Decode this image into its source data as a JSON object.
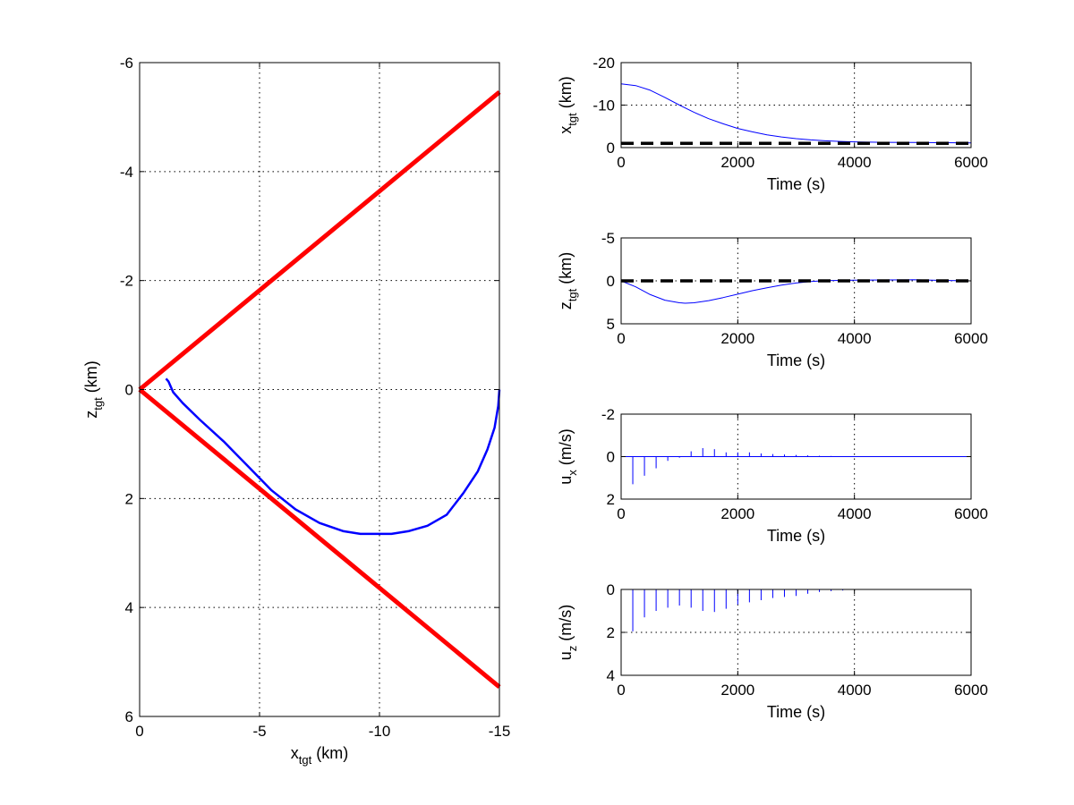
{
  "colors": {
    "cone": "#ff0000",
    "trajectory": "#0000ff",
    "reference": "#000000",
    "background": "#ffffff"
  },
  "chart_data": [
    {
      "type": "line",
      "id": "trajectory",
      "xlabel": {
        "main": "x",
        "sub": "tgt",
        "unit": " (km)"
      },
      "ylabel": {
        "main": "z",
        "sub": "tgt",
        "unit": " (km)"
      },
      "xlim": [
        0,
        -15
      ],
      "ylim": [
        6,
        -6
      ],
      "xticks": [
        0,
        -5,
        -10,
        -15
      ],
      "xtick_labels": [
        "0",
        "-5",
        "-10",
        "-15"
      ],
      "yticks": [
        -6,
        -4,
        -2,
        0,
        2,
        4,
        6
      ],
      "ytick_labels": [
        "-6",
        "-4",
        "-2",
        "0",
        "2",
        "4",
        "6"
      ],
      "grid": true,
      "series": [
        {
          "role": "cone-upper",
          "color": "#ff0000",
          "x": [
            0,
            -15
          ],
          "y": [
            0,
            -5.46
          ]
        },
        {
          "role": "cone-lower",
          "color": "#ff0000",
          "x": [
            0,
            -15
          ],
          "y": [
            0,
            5.46
          ]
        },
        {
          "role": "trajectory",
          "color": "#0000ff",
          "x": [
            -15,
            -14.95,
            -14.8,
            -14.5,
            -14.1,
            -13.5,
            -12.8,
            -12.0,
            -11.2,
            -10.5,
            -10.0,
            -9.2,
            -8.5,
            -7.5,
            -6.5,
            -5.5,
            -4.5,
            -3.5,
            -2.5,
            -1.8,
            -1.4,
            -1.2,
            -1.1
          ],
          "y": [
            0,
            0.3,
            0.7,
            1.1,
            1.5,
            1.9,
            2.3,
            2.5,
            2.6,
            2.65,
            2.65,
            2.65,
            2.6,
            2.45,
            2.2,
            1.85,
            1.4,
            0.95,
            0.55,
            0.25,
            0.05,
            -0.15,
            -0.2
          ]
        }
      ]
    },
    {
      "type": "line",
      "id": "x-vs-time",
      "xlabel": "Time (s)",
      "ylabel": {
        "main": "x",
        "sub": "tgt",
        "unit": " (km)"
      },
      "xlim": [
        0,
        6000
      ],
      "ylim": [
        0,
        -20
      ],
      "xticks": [
        0,
        2000,
        4000,
        6000
      ],
      "xtick_labels": [
        "0",
        "2000",
        "4000",
        "6000"
      ],
      "yticks": [
        -20,
        -10,
        0
      ],
      "ytick_labels": [
        "-20",
        "-10",
        "0"
      ],
      "grid": true,
      "series": [
        {
          "role": "trajectory",
          "color": "#0000ff",
          "x": [
            0,
            250,
            500,
            750,
            1000,
            1250,
            1500,
            1750,
            2000,
            2250,
            2500,
            2750,
            3000,
            3250,
            3500,
            3750,
            4000,
            4500,
            5000,
            5500,
            6000
          ],
          "y": [
            -15,
            -14.6,
            -13.5,
            -11.8,
            -10,
            -8.3,
            -6.8,
            -5.6,
            -4.5,
            -3.7,
            -3.0,
            -2.5,
            -2.1,
            -1.8,
            -1.6,
            -1.45,
            -1.35,
            -1.25,
            -1.2,
            -1.15,
            -1.1
          ]
        },
        {
          "role": "reference",
          "color": "#000000",
          "dashed": true,
          "x": [
            0,
            6000
          ],
          "y": [
            -1,
            -1
          ]
        }
      ]
    },
    {
      "type": "line",
      "id": "z-vs-time",
      "xlabel": "Time (s)",
      "ylabel": {
        "main": "z",
        "sub": "tgt",
        "unit": " (km)"
      },
      "xlim": [
        0,
        6000
      ],
      "ylim": [
        5,
        -5
      ],
      "xticks": [
        0,
        2000,
        4000,
        6000
      ],
      "xtick_labels": [
        "0",
        "2000",
        "4000",
        "6000"
      ],
      "yticks": [
        -5,
        0,
        5
      ],
      "ytick_labels": [
        "-5",
        "0",
        "5"
      ],
      "grid": true,
      "series": [
        {
          "role": "trajectory",
          "color": "#0000ff",
          "x": [
            0,
            250,
            500,
            750,
            1000,
            1100,
            1250,
            1500,
            1750,
            2000,
            2250,
            2500,
            2750,
            3000,
            3250,
            3500,
            4000,
            4500,
            5000,
            5500,
            6000
          ],
          "y": [
            0,
            0.7,
            1.6,
            2.25,
            2.55,
            2.6,
            2.55,
            2.3,
            1.95,
            1.55,
            1.15,
            0.8,
            0.5,
            0.25,
            0.08,
            -0.02,
            -0.08,
            -0.1,
            -0.12,
            -0.05,
            0
          ]
        },
        {
          "role": "reference",
          "color": "#000000",
          "dashed": true,
          "x": [
            0,
            6000
          ],
          "y": [
            0,
            0
          ]
        }
      ]
    },
    {
      "type": "bar",
      "id": "ux-vs-time",
      "xlabel": "Time (s)",
      "ylabel": {
        "main": "u",
        "sub": "x",
        "unit": " (m/s)"
      },
      "xlim": [
        0,
        6000
      ],
      "ylim": [
        2,
        -2
      ],
      "xticks": [
        0,
        2000,
        4000,
        6000
      ],
      "xtick_labels": [
        "0",
        "2000",
        "4000",
        "6000"
      ],
      "yticks": [
        -2,
        0,
        2
      ],
      "ytick_labels": [
        "-2",
        "0",
        "2"
      ],
      "grid": true,
      "series": [
        {
          "role": "impulses",
          "color": "#0000ff",
          "x": [
            200,
            400,
            600,
            800,
            1000,
            1200,
            1400,
            1600,
            1800,
            2000,
            2200,
            2400,
            2600,
            2800,
            3000,
            3200,
            3400,
            3600,
            3800,
            4000
          ],
          "y": [
            1.3,
            0.9,
            0.55,
            0.2,
            0.05,
            -0.25,
            -0.4,
            -0.35,
            -0.2,
            -0.2,
            -0.2,
            -0.15,
            -0.12,
            -0.1,
            -0.08,
            -0.06,
            -0.04,
            -0.03,
            -0.02,
            -0.01
          ]
        }
      ]
    },
    {
      "type": "bar",
      "id": "uz-vs-time",
      "xlabel": "Time (s)",
      "ylabel": {
        "main": "u",
        "sub": "z",
        "unit": " (m/s)"
      },
      "xlim": [
        0,
        6000
      ],
      "ylim": [
        4,
        0
      ],
      "xticks": [
        0,
        2000,
        4000,
        6000
      ],
      "xtick_labels": [
        "0",
        "2000",
        "4000",
        "6000"
      ],
      "yticks": [
        0,
        2,
        4
      ],
      "ytick_labels": [
        "0",
        "2",
        "4"
      ],
      "grid": true,
      "series": [
        {
          "role": "impulses",
          "color": "#0000ff",
          "x": [
            200,
            400,
            600,
            800,
            1000,
            1200,
            1400,
            1600,
            1800,
            2000,
            2200,
            2400,
            2600,
            2800,
            3000,
            3200,
            3400,
            3600,
            3800,
            4000
          ],
          "y": [
            1.95,
            1.3,
            1.0,
            0.85,
            0.75,
            0.85,
            1.0,
            1.05,
            0.9,
            0.7,
            0.6,
            0.5,
            0.4,
            0.35,
            0.3,
            0.2,
            0.12,
            0.08,
            0.05,
            0.02
          ]
        }
      ]
    }
  ]
}
